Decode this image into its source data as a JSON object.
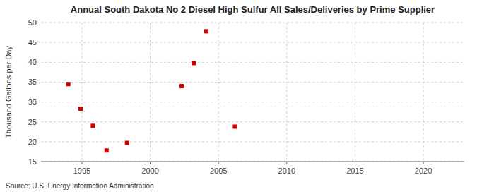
{
  "chart_data": {
    "type": "scatter",
    "title": "Annual South Dakota No 2 Diesel High Sulfur All Sales/Deliveries by Prime Supplier",
    "ylabel": "Thousand Gallons per Day",
    "source": "Source: U.S. Energy Information Administration",
    "x": [
      1994.0,
      1994.9,
      1995.8,
      1996.8,
      1998.3,
      2002.3,
      2003.2,
      2004.1,
      2006.2
    ],
    "values": [
      34.5,
      28.3,
      24.0,
      17.8,
      19.7,
      34.0,
      39.8,
      47.8,
      23.8
    ],
    "color": "#cc0000",
    "marker": "square",
    "xlim": [
      1992,
      2023
    ],
    "ylim": [
      15,
      50
    ],
    "xticks": [
      1995,
      2000,
      2005,
      2010,
      2015,
      2020
    ],
    "yticks": [
      15,
      20,
      25,
      30,
      35,
      40,
      45,
      50
    ],
    "grid": true
  }
}
